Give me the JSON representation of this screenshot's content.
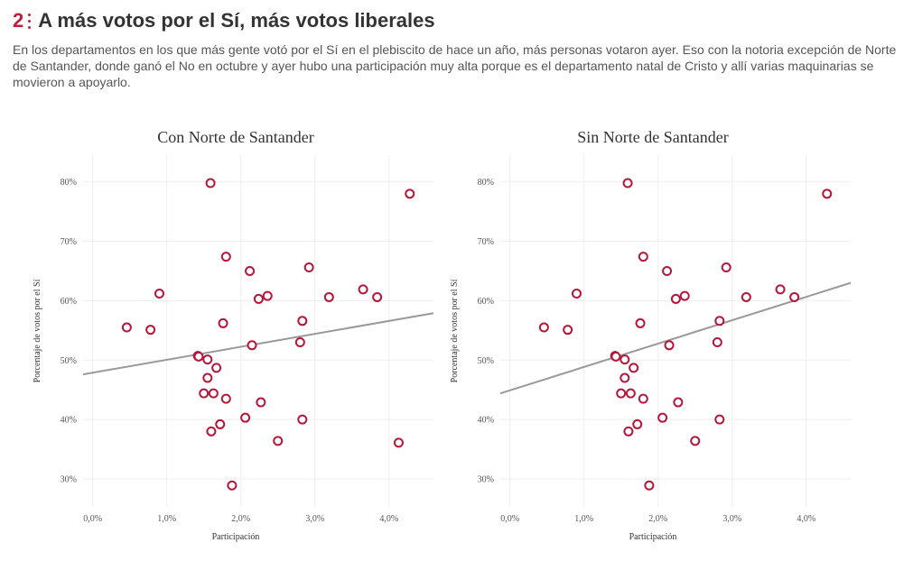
{
  "header": {
    "number": "2",
    "title": "A más votos por el Sí, más votos liberales",
    "description": "En los departamentos en los que más gente votó por el Sí en el plebiscito de hace un año, más personas votaron ayer. Eso con la notoria excepción de Norte de Santander, donde ganó el No en octubre y ayer hubo una participación muy alta porque es el departamento natal de Cristo y allí varias maquinarias se movieron a apoyarlo."
  },
  "colors": {
    "accent": "#c0203a",
    "points": "#b5173a",
    "trend": "#999999"
  },
  "chart_data": [
    {
      "type": "scatter",
      "title": "Con Norte de Santander",
      "xlabel": "Participación",
      "ylabel": "Porcentaje de votos por el Sí",
      "xlim": [
        -0.13,
        4.6
      ],
      "ylim": [
        25.3,
        84.5
      ],
      "xticks": [
        0,
        1,
        2,
        3,
        4
      ],
      "xtick_labels": [
        "0,0%",
        "1,0%",
        "2,0%",
        "3,0%",
        "4,0%"
      ],
      "yticks": [
        30,
        40,
        50,
        60,
        70,
        80
      ],
      "ytick_labels": [
        "30%",
        "40%",
        "50%",
        "60%",
        "70%",
        "80%"
      ],
      "grid": true,
      "trendline": {
        "x": [
          -0.13,
          4.6
        ],
        "y": [
          47.6,
          57.9
        ]
      },
      "x": [
        1.59,
        4.28,
        1.8,
        2.92,
        0.9,
        2.12,
        3.65,
        3.84,
        2.36,
        2.24,
        3.19,
        0.46,
        0.78,
        1.76,
        2.83,
        2.15,
        2.8,
        1.42,
        1.43,
        1.55,
        1.67,
        1.55,
        1.5,
        1.63,
        1.8,
        2.27,
        2.06,
        1.72,
        1.6,
        2.83,
        2.5,
        4.13,
        1.88
      ],
      "y": [
        79.8,
        78.0,
        67.4,
        65.6,
        61.2,
        65.0,
        61.9,
        60.6,
        60.8,
        60.3,
        60.6,
        55.5,
        55.1,
        56.2,
        56.6,
        52.5,
        53.0,
        50.7,
        50.6,
        50.1,
        48.7,
        47.0,
        44.4,
        44.4,
        43.5,
        42.9,
        40.3,
        39.2,
        38.0,
        40.0,
        36.4,
        36.1,
        28.9
      ]
    },
    {
      "type": "scatter",
      "title": "Sin Norte de Santander",
      "xlabel": "Participación",
      "ylabel": "Porcentaje de votos por el Sí",
      "xlim": [
        -0.13,
        4.6
      ],
      "ylim": [
        25.3,
        84.5
      ],
      "xticks": [
        0,
        1,
        2,
        3,
        4
      ],
      "xtick_labels": [
        "0,0%",
        "1,0%",
        "2,0%",
        "3,0%",
        "4,0%"
      ],
      "yticks": [
        30,
        40,
        50,
        60,
        70,
        80
      ],
      "ytick_labels": [
        "30%",
        "40%",
        "50%",
        "60%",
        "70%",
        "80%"
      ],
      "grid": true,
      "trendline": {
        "x": [
          -0.13,
          4.6
        ],
        "y": [
          44.4,
          63.0
        ]
      },
      "x": [
        1.59,
        4.28,
        1.8,
        2.92,
        0.9,
        2.12,
        3.65,
        3.84,
        2.36,
        2.24,
        3.19,
        0.46,
        0.78,
        1.76,
        2.83,
        2.15,
        2.8,
        1.42,
        1.43,
        1.55,
        1.67,
        1.55,
        1.5,
        1.63,
        1.8,
        2.27,
        2.06,
        1.72,
        1.6,
        2.83,
        2.5,
        1.88
      ],
      "y": [
        79.8,
        78.0,
        67.4,
        65.6,
        61.2,
        65.0,
        61.9,
        60.6,
        60.8,
        60.3,
        60.6,
        55.5,
        55.1,
        56.2,
        56.6,
        52.5,
        53.0,
        50.7,
        50.6,
        50.1,
        48.7,
        47.0,
        44.4,
        44.4,
        43.5,
        42.9,
        40.3,
        39.2,
        38.0,
        40.0,
        36.4,
        28.9
      ]
    }
  ]
}
